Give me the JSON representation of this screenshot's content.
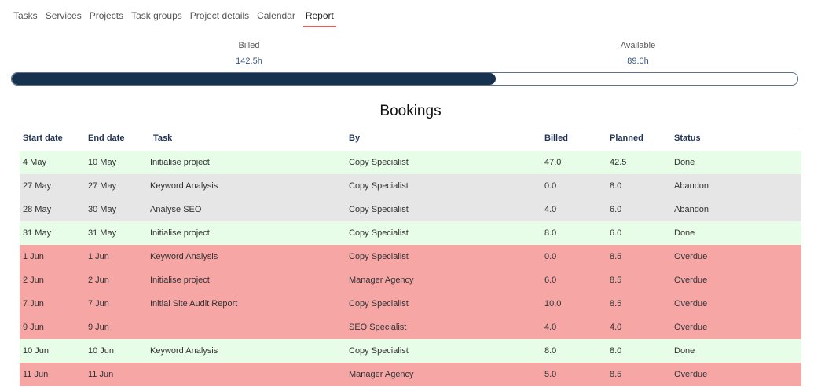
{
  "tabs": [
    "Tasks",
    "Services",
    "Projects",
    "Task groups",
    "Project details",
    "Calendar",
    "Report"
  ],
  "active_tab": 6,
  "progress": {
    "billed": {
      "label": "Billed",
      "value": 142.5,
      "value_label": "142.5h"
    },
    "available": {
      "label": "Available",
      "value": 89.0,
      "value_label": "89.0h"
    },
    "fill_color": "#17324f"
  },
  "table": {
    "title": "Bookings",
    "columns": [
      "Start date",
      "End date",
      "Task",
      "By",
      "Billed",
      "Planned",
      "Status"
    ],
    "rows": [
      {
        "cells": [
          "4 May",
          "10 May",
          "Initialise project",
          "Copy Specialist",
          "47.0",
          "42.5",
          "Done"
        ],
        "color": "#e7fde7"
      },
      {
        "cells": [
          "27 May",
          "27 May",
          "Keyword Analysis",
          "Copy Specialist",
          "0.0",
          "8.0",
          "Abandon"
        ],
        "color": "#e6e6e6"
      },
      {
        "cells": [
          "28 May",
          "30 May",
          "Analyse SEO",
          "Copy Specialist",
          "4.0",
          "6.0",
          "Abandon"
        ],
        "color": "#e6e6e6"
      },
      {
        "cells": [
          "31 May",
          "31 May",
          "Initialise project",
          "Copy Specialist",
          "8.0",
          "6.0",
          "Done"
        ],
        "color": "#e7fde7"
      },
      {
        "cells": [
          "1 Jun",
          "1 Jun",
          "Keyword Analysis",
          "Copy Specialist",
          "0.0",
          "8.5",
          "Overdue"
        ],
        "color": "#f7a6a6"
      },
      {
        "cells": [
          "2 Jun",
          "2 Jun",
          "Initialise project",
          "Manager Agency",
          "6.0",
          "8.5",
          "Overdue"
        ],
        "color": "#f7a6a6"
      },
      {
        "cells": [
          "7 Jun",
          "7 Jun",
          "Initial Site Audit Report",
          "Copy Specialist",
          "10.0",
          "8.5",
          "Overdue"
        ],
        "color": "#f7a6a6"
      },
      {
        "cells": [
          "9 Jun",
          "9 Jun",
          null,
          "SEO Specialist",
          "4.0",
          "4.0",
          "Overdue"
        ],
        "color": "#f7a6a6"
      },
      {
        "cells": [
          "10 Jun",
          "10 Jun",
          "Keyword Analysis",
          "Copy Specialist",
          "8.0",
          "8.0",
          "Done"
        ],
        "color": "#e7fde7"
      },
      {
        "cells": [
          "11 Jun",
          "11 Jun",
          null,
          "Manager Agency",
          "5.0",
          "8.5",
          "Overdue"
        ],
        "color": "#f7a6a6"
      }
    ]
  }
}
